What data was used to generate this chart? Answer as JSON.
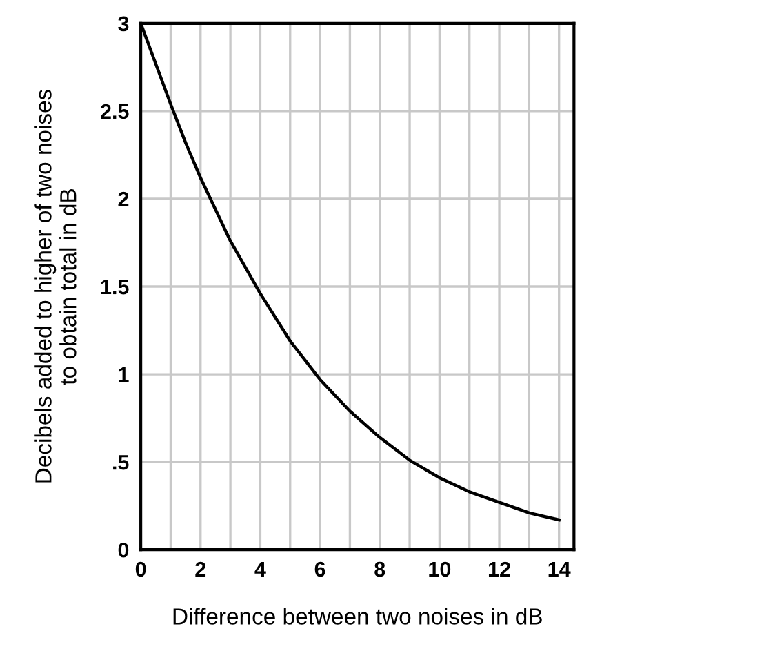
{
  "chart_data": {
    "type": "line",
    "xlabel": "Difference between two noises in dB",
    "ylabel": "Decibels added to higher of two noises\nto obtain total in dB",
    "x": [
      0,
      0.5,
      1,
      1.5,
      2,
      3,
      4,
      5,
      6,
      7,
      8,
      9,
      10,
      11,
      12,
      13,
      14
    ],
    "series": [
      {
        "color": "#000000",
        "values": [
          3.0,
          2.77,
          2.54,
          2.32,
          2.12,
          1.76,
          1.46,
          1.19,
          0.97,
          0.79,
          0.64,
          0.51,
          0.41,
          0.33,
          0.27,
          0.21,
          0.17
        ]
      }
    ],
    "xlim": [
      0,
      14.5
    ],
    "ylim": [
      0,
      3
    ],
    "xticks": [
      0,
      {
        "value": 1,
        "label": null
      },
      2,
      {
        "value": 3,
        "label": null
      },
      4,
      {
        "value": 5,
        "label": null
      },
      6,
      {
        "value": 7,
        "label": null
      },
      8,
      {
        "value": 9,
        "label": null
      },
      10,
      {
        "value": 11,
        "label": null
      },
      12,
      {
        "value": 13,
        "label": null
      },
      14
    ],
    "yticks": [
      0,
      {
        "value": 0.5,
        "label": ".5"
      },
      1,
      1.5,
      2,
      2.5,
      3
    ],
    "grid": true,
    "marker": "none",
    "line_style": "solid"
  }
}
